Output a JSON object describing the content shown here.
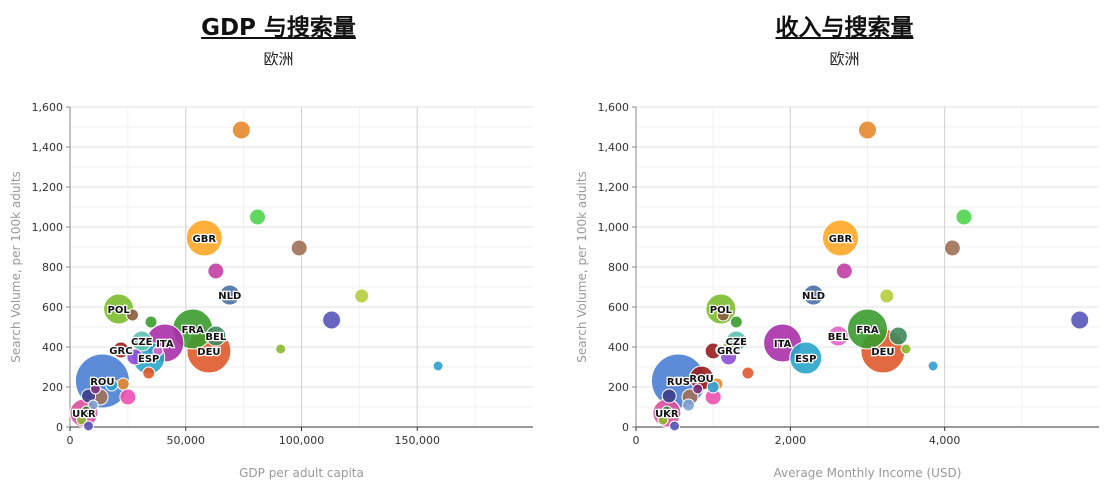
{
  "chart_data": [
    {
      "type": "scatter",
      "title": "GDP 与搜索量",
      "subtitle": "欧洲",
      "xlabel": "GDP per adult capita",
      "ylabel": "Search Volume, per 100k adults",
      "xlim": [
        0,
        200000
      ],
      "ylim": [
        0,
        1600
      ],
      "xticks": [
        0,
        50000,
        100000,
        150000
      ],
      "xtick_labels": [
        "0",
        "50,000",
        "100,000",
        "150,000"
      ],
      "yticks": [
        0,
        200,
        400,
        600,
        800,
        1000,
        1200,
        1400,
        1600
      ],
      "ytick_labels": [
        "0",
        "200",
        "400",
        "600",
        "800",
        "1,000",
        "1,200",
        "1,400",
        "1,600"
      ],
      "grid": true,
      "points": [
        {
          "x": 14000,
          "y": 230,
          "r": 27,
          "color": "#4a7fd4",
          "label": "ROU"
        },
        {
          "x": 60000,
          "y": 380,
          "r": 22,
          "color": "#e05a2b",
          "label": "DEU"
        },
        {
          "x": 53000,
          "y": 490,
          "r": 20,
          "color": "#3a9c2e",
          "label": "FRA"
        },
        {
          "x": 41000,
          "y": 420,
          "r": 19,
          "color": "#a930a8",
          "label": "ITA"
        },
        {
          "x": 58000,
          "y": 945,
          "r": 18,
          "color": "#ffa726",
          "label": "GBR"
        },
        {
          "x": 34000,
          "y": 345,
          "r": 16,
          "color": "#2aa5c9",
          "label": "ESP"
        },
        {
          "x": 21000,
          "y": 590,
          "r": 15,
          "color": "#7cbd2e",
          "label": "POL"
        },
        {
          "x": 69000,
          "y": 660,
          "r": 10,
          "color": "#4a6fa5",
          "label": "NLD"
        },
        {
          "x": 63000,
          "y": 455,
          "r": 10,
          "color": "#3d8a5c",
          "label": "BEL"
        },
        {
          "x": 31000,
          "y": 430,
          "r": 10,
          "color": "#5cc0b3",
          "label": "CZE"
        },
        {
          "x": 22000,
          "y": 385,
          "r": 8,
          "color": "#9b1c1c",
          "label": "GRC"
        },
        {
          "x": 6000,
          "y": 70,
          "r": 14,
          "color": "#d94f9c",
          "label": "UKR"
        },
        {
          "x": 74000,
          "y": 1485,
          "r": 9,
          "color": "#e5882c",
          "label": ""
        },
        {
          "x": 81000,
          "y": 1050,
          "r": 8,
          "color": "#4cd44c",
          "label": ""
        },
        {
          "x": 99000,
          "y": 895,
          "r": 8,
          "color": "#a07056",
          "label": ""
        },
        {
          "x": 63000,
          "y": 780,
          "r": 8,
          "color": "#c03fa5",
          "label": ""
        },
        {
          "x": 126000,
          "y": 655,
          "r": 7,
          "color": "#b5cc3c",
          "label": ""
        },
        {
          "x": 113000,
          "y": 535,
          "r": 9,
          "color": "#5656b8",
          "label": ""
        },
        {
          "x": 91000,
          "y": 390,
          "r": 5,
          "color": "#8ab82e",
          "label": ""
        },
        {
          "x": 159000,
          "y": 305,
          "r": 5,
          "color": "#2e9fd0",
          "label": ""
        },
        {
          "x": 27000,
          "y": 560,
          "r": 6,
          "color": "#8b5a3c",
          "label": ""
        },
        {
          "x": 35000,
          "y": 525,
          "r": 6,
          "color": "#3a9c2e",
          "label": ""
        },
        {
          "x": 28000,
          "y": 350,
          "r": 8,
          "color": "#8f4fd4",
          "label": ""
        },
        {
          "x": 34000,
          "y": 270,
          "r": 6,
          "color": "#e05a2b",
          "label": ""
        },
        {
          "x": 23000,
          "y": 215,
          "r": 6,
          "color": "#e5882c",
          "label": ""
        },
        {
          "x": 18000,
          "y": 210,
          "r": 6,
          "color": "#2e9fd0",
          "label": ""
        },
        {
          "x": 25000,
          "y": 150,
          "r": 8,
          "color": "#ef4fb0",
          "label": ""
        },
        {
          "x": 13000,
          "y": 150,
          "r": 8,
          "color": "#a07056",
          "label": ""
        },
        {
          "x": 8000,
          "y": 155,
          "r": 7,
          "color": "#3d3d8a",
          "label": ""
        },
        {
          "x": 10000,
          "y": 110,
          "r": 5,
          "color": "#7aa2cf",
          "label": ""
        },
        {
          "x": 7000,
          "y": 80,
          "r": 5,
          "color": "#2e7a2e",
          "label": ""
        },
        {
          "x": 11000,
          "y": 190,
          "r": 5,
          "color": "#7a2e7a",
          "label": ""
        },
        {
          "x": 5000,
          "y": 35,
          "r": 5,
          "color": "#8ab82e",
          "label": ""
        },
        {
          "x": 8000,
          "y": 5,
          "r": 5,
          "color": "#5656b8",
          "label": ""
        },
        {
          "x": 38000,
          "y": 380,
          "r": 5,
          "color": "#e064c8",
          "label": ""
        }
      ]
    },
    {
      "type": "scatter",
      "title": "收入与搜索量",
      "subtitle": "欧洲",
      "xlabel": "Average Monthly Income (USD)",
      "ylabel": "Search Volume, per 100k adults",
      "xlim": [
        0,
        6000
      ],
      "ylim": [
        0,
        1600
      ],
      "xticks": [
        0,
        2000,
        4000
      ],
      "xtick_labels": [
        "0",
        "2,000",
        "4,000"
      ],
      "yticks": [
        0,
        200,
        400,
        600,
        800,
        1000,
        1200,
        1400,
        1600
      ],
      "ytick_labels": [
        "0",
        "200",
        "400",
        "600",
        "800",
        "1,000",
        "1,200",
        "1,400",
        "1,600"
      ],
      "grid": true,
      "points": [
        {
          "x": 550,
          "y": 230,
          "r": 27,
          "color": "#4a7fd4",
          "label": "RUS"
        },
        {
          "x": 3200,
          "y": 380,
          "r": 22,
          "color": "#e05a2b",
          "label": "DEU"
        },
        {
          "x": 3000,
          "y": 490,
          "r": 20,
          "color": "#3a9c2e",
          "label": "FRA"
        },
        {
          "x": 1900,
          "y": 420,
          "r": 19,
          "color": "#a930a8",
          "label": "ITA"
        },
        {
          "x": 2650,
          "y": 945,
          "r": 18,
          "color": "#ffa726",
          "label": "GBR"
        },
        {
          "x": 2200,
          "y": 345,
          "r": 16,
          "color": "#2aa5c9",
          "label": "ESP"
        },
        {
          "x": 1100,
          "y": 590,
          "r": 15,
          "color": "#7cbd2e",
          "label": "POL"
        },
        {
          "x": 2300,
          "y": 660,
          "r": 10,
          "color": "#4a6fa5",
          "label": "NLD"
        },
        {
          "x": 2620,
          "y": 455,
          "r": 10,
          "color": "#e064c8",
          "label": "BEL"
        },
        {
          "x": 1300,
          "y": 430,
          "r": 10,
          "color": "#5cc0b3",
          "label": "CZE"
        },
        {
          "x": 850,
          "y": 245,
          "r": 12,
          "color": "#9b1c1c",
          "label": "ROU"
        },
        {
          "x": 1200,
          "y": 385,
          "r": 8,
          "color": "#8ab82e",
          "label": "GRC"
        },
        {
          "x": 400,
          "y": 70,
          "r": 14,
          "color": "#d94f9c",
          "label": "UKR"
        },
        {
          "x": 3000,
          "y": 1485,
          "r": 9,
          "color": "#e5882c",
          "label": ""
        },
        {
          "x": 4250,
          "y": 1050,
          "r": 8,
          "color": "#4cd44c",
          "label": ""
        },
        {
          "x": 4100,
          "y": 895,
          "r": 8,
          "color": "#a07056",
          "label": ""
        },
        {
          "x": 2700,
          "y": 780,
          "r": 8,
          "color": "#c03fa5",
          "label": ""
        },
        {
          "x": 3250,
          "y": 655,
          "r": 7,
          "color": "#b5cc3c",
          "label": ""
        },
        {
          "x": 5750,
          "y": 535,
          "r": 9,
          "color": "#5656b8",
          "label": ""
        },
        {
          "x": 3500,
          "y": 390,
          "r": 5,
          "color": "#8ab82e",
          "label": ""
        },
        {
          "x": 3850,
          "y": 305,
          "r": 5,
          "color": "#2e9fd0",
          "label": ""
        },
        {
          "x": 3400,
          "y": 455,
          "r": 9,
          "color": "#3d8a5c",
          "label": ""
        },
        {
          "x": 1130,
          "y": 560,
          "r": 6,
          "color": "#8b5a3c",
          "label": ""
        },
        {
          "x": 1300,
          "y": 525,
          "r": 6,
          "color": "#3a9c2e",
          "label": ""
        },
        {
          "x": 1200,
          "y": 350,
          "r": 8,
          "color": "#8f4fd4",
          "label": ""
        },
        {
          "x": 1450,
          "y": 270,
          "r": 6,
          "color": "#e05a2b",
          "label": ""
        },
        {
          "x": 1050,
          "y": 215,
          "r": 6,
          "color": "#e5882c",
          "label": ""
        },
        {
          "x": 1000,
          "y": 200,
          "r": 6,
          "color": "#2e9fd0",
          "label": ""
        },
        {
          "x": 1000,
          "y": 150,
          "r": 8,
          "color": "#ef4fb0",
          "label": ""
        },
        {
          "x": 700,
          "y": 150,
          "r": 8,
          "color": "#a07056",
          "label": ""
        },
        {
          "x": 430,
          "y": 155,
          "r": 7,
          "color": "#3d3d8a",
          "label": ""
        },
        {
          "x": 680,
          "y": 110,
          "r": 6,
          "color": "#7aa2cf",
          "label": ""
        },
        {
          "x": 400,
          "y": 80,
          "r": 5,
          "color": "#2e7a2e",
          "label": ""
        },
        {
          "x": 800,
          "y": 190,
          "r": 5,
          "color": "#7a2e7a",
          "label": ""
        },
        {
          "x": 350,
          "y": 35,
          "r": 5,
          "color": "#8ab82e",
          "label": ""
        },
        {
          "x": 500,
          "y": 5,
          "r": 5,
          "color": "#5656b8",
          "label": ""
        },
        {
          "x": 1000,
          "y": 380,
          "r": 8,
          "color": "#9b1c1c",
          "label": ""
        },
        {
          "x": 1100,
          "y": 385,
          "r": 5,
          "color": "#e064c8",
          "label": ""
        }
      ]
    }
  ]
}
